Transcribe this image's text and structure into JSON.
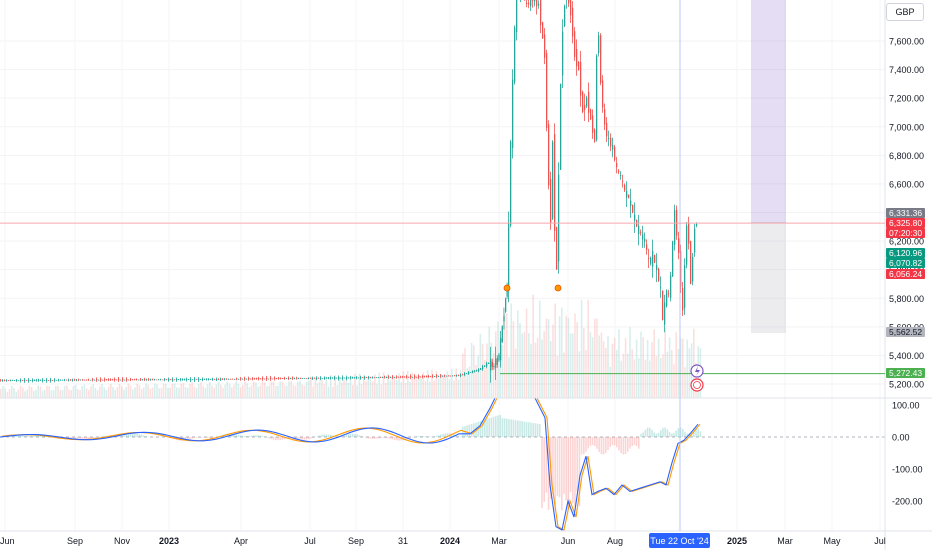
{
  "currency": "GBP",
  "price_axis": {
    "ticks": [
      7600,
      7400,
      7200,
      7000,
      6800,
      6600,
      6400,
      6200,
      6000,
      5800,
      5600,
      5400,
      5200
    ]
  },
  "price_badges": [
    {
      "label": "6,331.36",
      "value": 6331.36,
      "color": "#787b86"
    },
    {
      "label": "6,325.80",
      "value": 6325.8,
      "color": "#f23645"
    },
    {
      "label": "07:20:30",
      "value": 6305,
      "color": "#f23645"
    },
    {
      "label": "6,120.96",
      "value": 6120.96,
      "color": "#089981"
    },
    {
      "label": "6,070.82",
      "value": 6070.82,
      "color": "#089981"
    },
    {
      "label": "6,056.24",
      "value": 6036,
      "color": "#f23645"
    },
    {
      "label": "5,562.52",
      "value": 5562.52,
      "color": "#b2b5be"
    },
    {
      "label": "5,272.43",
      "value": 5272.43,
      "color": "#4caf50"
    }
  ],
  "oscillator_axis": {
    "ticks": [
      "100.00",
      "0.00",
      "-100.00",
      "-200.00"
    ]
  },
  "time_axis": {
    "labels": [
      {
        "text": "Jun",
        "bold": false
      },
      {
        "text": "Sep",
        "bold": false
      },
      {
        "text": "Nov",
        "bold": false
      },
      {
        "text": "2023",
        "bold": true
      },
      {
        "text": "Apr",
        "bold": false
      },
      {
        "text": "Jul",
        "bold": false
      },
      {
        "text": "Sep",
        "bold": false
      },
      {
        "text": "31",
        "bold": false
      },
      {
        "text": "2024",
        "bold": true
      },
      {
        "text": "Mar",
        "bold": false
      },
      {
        "text": "Jun",
        "bold": false
      },
      {
        "text": "Aug",
        "bold": false
      },
      {
        "text": "2025",
        "bold": true
      },
      {
        "text": "Mar",
        "bold": false
      },
      {
        "text": "May",
        "bold": false
      },
      {
        "text": "Jul",
        "bold": false
      }
    ],
    "crosshair_label": "Tue 22 Oct '24"
  },
  "colors": {
    "up": "#26a69a",
    "down": "#ef5350",
    "macd": "#2962ff",
    "signal": "#ff9800",
    "crosshair": "#9598a1",
    "accent": "#2962ff"
  },
  "chart_data": {
    "type": "candlestick",
    "price_range": [
      5150,
      7800
    ],
    "oscillator_range": [
      -300,
      130
    ],
    "candles_description": "Flat near 5,200 until Feb 2024, spike above 7,800 in Mar 2024, decline to ~5,500 by Oct 2024, last close ~6,325",
    "key_levels": [
      6331.36,
      6325.8,
      6120.96,
      6070.82,
      6056.24,
      5562.52,
      5272.43
    ]
  }
}
